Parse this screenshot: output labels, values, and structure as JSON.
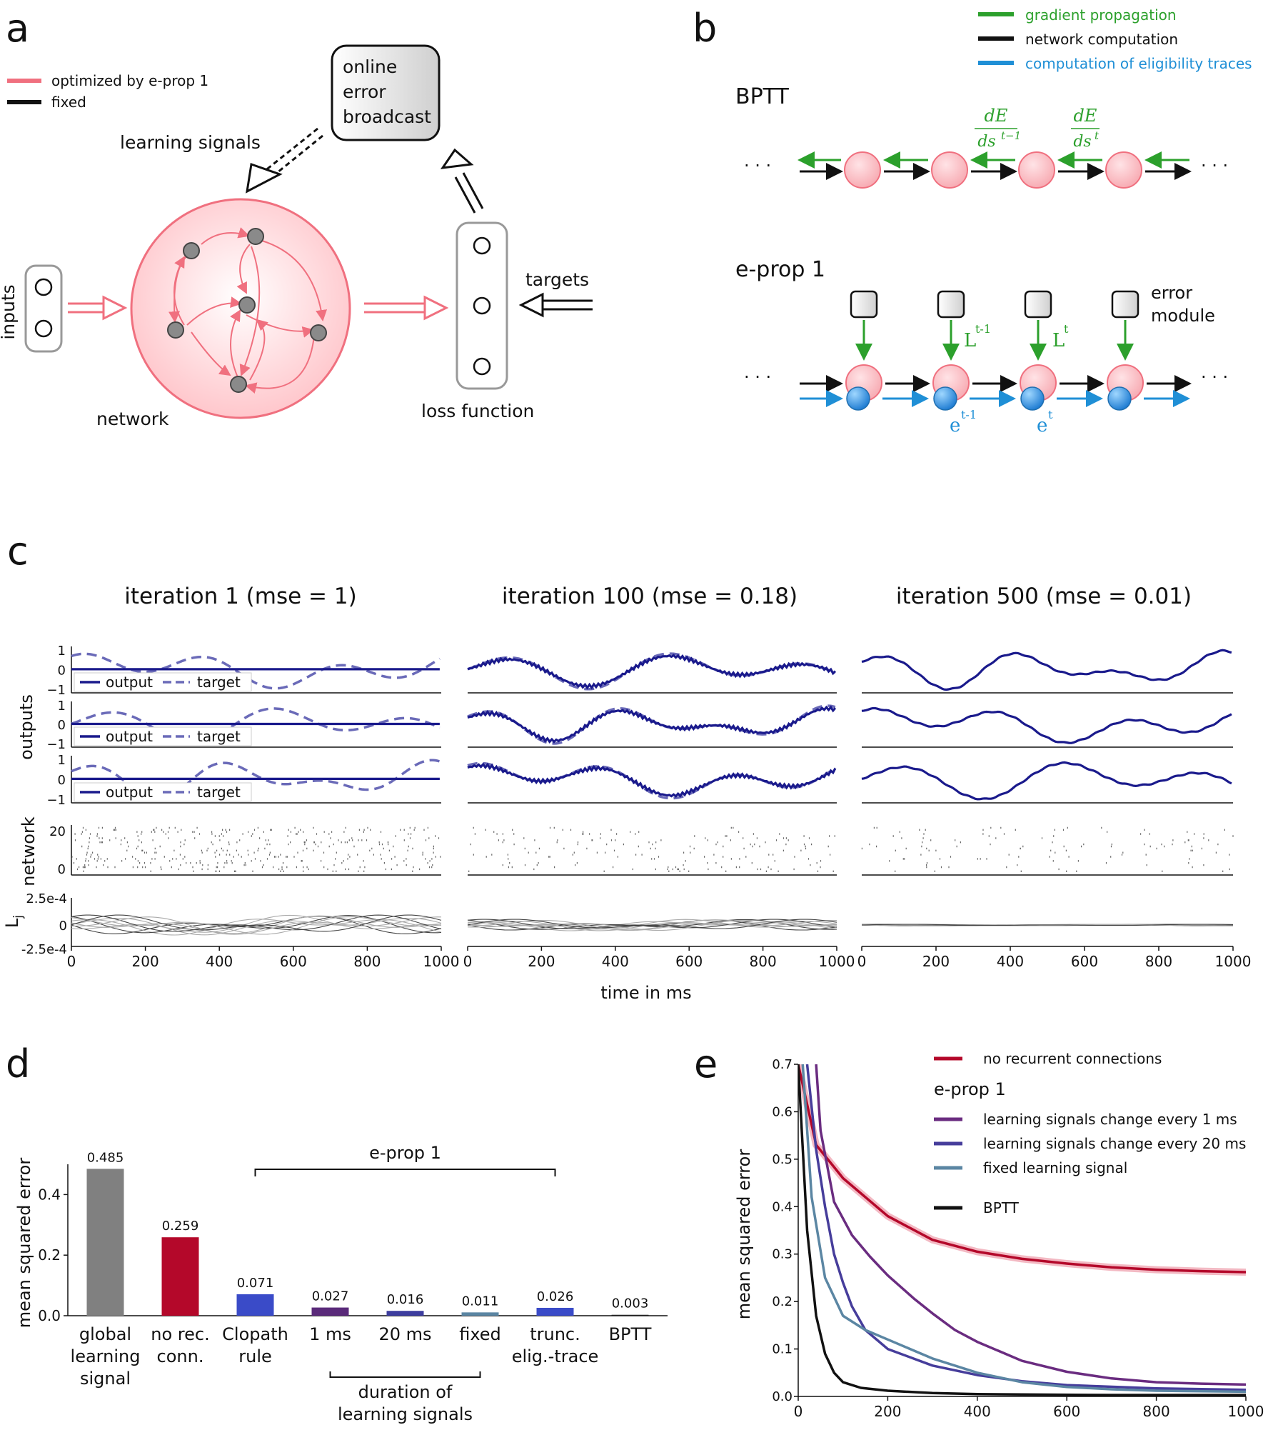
{
  "colors": {
    "red": "#f0707f",
    "pinkfill": "#ffd4d8",
    "green": "#2ca02c",
    "blue": "#1f8fd6",
    "navy": "#1a1a8c",
    "target": "#6a6ab8",
    "gray": "#808080",
    "crimson": "#b4082a",
    "purple": "#6a2c80",
    "indigo": "#463d9b",
    "steel": "#5b86a3"
  },
  "panel_a": {
    "label": "a",
    "legend": {
      "optimized": "optimized by e-prop 1",
      "fixed": "fixed"
    },
    "learning_signals": "learning signals",
    "broadcast_lines": [
      "online",
      "error",
      "broadcast"
    ],
    "inputs": "inputs",
    "network": "network",
    "targets": "targets",
    "loss_function": "loss function"
  },
  "panel_b": {
    "label": "b",
    "legend": [
      "gradient propagation",
      "network computation",
      "computation of eligibility traces"
    ],
    "bptt_title": "BPTT",
    "eprop_title": "e-prop 1",
    "dE": "dE",
    "ds_prev": "ds",
    "sup_prev": "t−1",
    "ds_cur": "ds",
    "sup_cur": "t",
    "error_module": [
      "error",
      "module"
    ],
    "L_base": "L",
    "L_prev_sup": "t-1",
    "L_cur_sup": "t",
    "e_base": "e",
    "e_prev_sup": "t-1",
    "e_cur_sup": "t",
    "dots": "· · ·"
  },
  "panel_c": {
    "label": "c",
    "titles": [
      "iteration 1 (mse = 1)",
      "iteration 100 (mse = 0.18)",
      "iteration 500 (mse = 0.01)"
    ],
    "ylabel_outputs": "outputs",
    "ylabel_network": "network",
    "ylabel_L": "L",
    "ylabel_L_sub": "j",
    "out_ticks": [
      "1",
      "0",
      "−1"
    ],
    "net_ticks": [
      "20",
      "0"
    ],
    "L_ticks": [
      "2.5e-4",
      "0",
      "-2.5e-4"
    ],
    "legend_output": "output",
    "legend_target": "target",
    "xticks": [
      "0",
      "200",
      "400",
      "600",
      "800",
      "1000"
    ],
    "xlabel": "time in ms"
  },
  "chart_data": [
    {
      "type": "bar",
      "panel": "d",
      "ylabel": "mean squared error",
      "ylim": [
        0,
        0.5
      ],
      "yticks": [
        "0.0",
        "0.2",
        "0.4"
      ],
      "categories": [
        "global learning signal",
        "no rec. conn.",
        "Clopath rule",
        "1 ms",
        "20 ms",
        "fixed",
        "trunc. elig.-trace",
        "BPTT"
      ],
      "category_lines": [
        [
          "global",
          "learning",
          "signal"
        ],
        [
          "no rec.",
          "conn."
        ],
        [
          "Clopath",
          "rule"
        ],
        [
          "1 ms"
        ],
        [
          "20 ms"
        ],
        [
          "fixed"
        ],
        [
          "trunc.",
          "elig.-trace"
        ],
        [
          "BPTT"
        ]
      ],
      "values": [
        0.485,
        0.259,
        0.071,
        0.027,
        0.016,
        0.011,
        0.026,
        0.003
      ],
      "value_labels": [
        "0.485",
        "0.259",
        "0.071",
        "0.027",
        "0.016",
        "0.011",
        "0.026",
        "0.003"
      ],
      "bar_colors": [
        "#808080",
        "#b4082a",
        "#3a4bc8",
        "#5a2a7a",
        "#3d3d9e",
        "#5b86a3",
        "#3a4bc8",
        "#222222"
      ],
      "bracket_label": "e-prop 1",
      "duration_label": [
        "duration of",
        "learning signals"
      ]
    },
    {
      "type": "line",
      "panel": "e",
      "ylabel": "mean squared error",
      "xlim": [
        0,
        1000
      ],
      "ylim": [
        0,
        0.7
      ],
      "xticks": [
        "0",
        "200",
        "400",
        "600",
        "800",
        "1000"
      ],
      "yticks": [
        "0.0",
        "0.1",
        "0.2",
        "0.3",
        "0.4",
        "0.5",
        "0.6",
        "0.7"
      ],
      "legend_header": "e-prop 1",
      "series": [
        {
          "name": "no recurrent connections",
          "color": "#b4082a",
          "x": [
            0,
            40,
            100,
            200,
            300,
            400,
            500,
            600,
            700,
            800,
            900,
            1000
          ],
          "y": [
            0.7,
            0.53,
            0.46,
            0.38,
            0.33,
            0.305,
            0.29,
            0.28,
            0.272,
            0.267,
            0.264,
            0.262
          ]
        },
        {
          "name": "learning signals change every 1 ms",
          "color": "#6a2c80",
          "x": [
            40,
            50,
            80,
            120,
            160,
            200,
            260,
            300,
            350,
            400,
            450,
            500,
            600,
            700,
            800,
            900,
            1000
          ],
          "y": [
            0.7,
            0.56,
            0.41,
            0.34,
            0.295,
            0.255,
            0.205,
            0.175,
            0.14,
            0.115,
            0.095,
            0.075,
            0.052,
            0.038,
            0.03,
            0.027,
            0.025
          ]
        },
        {
          "name": "learning signals change every 20 ms",
          "color": "#463d9b",
          "x": [
            20,
            40,
            60,
            80,
            100,
            120,
            150,
            200,
            300,
            400,
            500,
            600,
            800,
            1000
          ],
          "y": [
            0.7,
            0.52,
            0.4,
            0.3,
            0.24,
            0.19,
            0.14,
            0.1,
            0.065,
            0.045,
            0.032,
            0.024,
            0.017,
            0.014
          ]
        },
        {
          "name": "fixed learning signal",
          "color": "#5b86a3",
          "x": [
            10,
            30,
            60,
            100,
            150,
            200,
            250,
            300,
            400,
            500,
            600,
            700,
            800,
            1000
          ],
          "y": [
            0.7,
            0.42,
            0.25,
            0.17,
            0.14,
            0.12,
            0.1,
            0.08,
            0.05,
            0.03,
            0.02,
            0.015,
            0.012,
            0.01
          ]
        },
        {
          "name": "BPTT",
          "color": "#111111",
          "x": [
            0,
            20,
            40,
            60,
            80,
            100,
            140,
            200,
            300,
            400,
            500,
            700,
            1000
          ],
          "y": [
            0.7,
            0.35,
            0.17,
            0.09,
            0.05,
            0.03,
            0.018,
            0.012,
            0.007,
            0.005,
            0.004,
            0.003,
            0.003
          ]
        }
      ]
    }
  ]
}
